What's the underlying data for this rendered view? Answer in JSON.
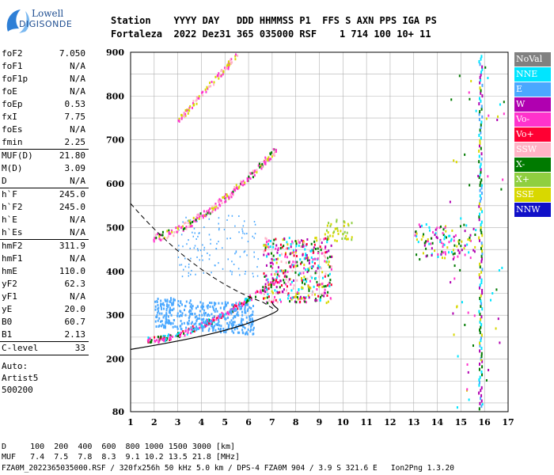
{
  "logo": {
    "line1": "Lowell",
    "line2": "DIGISONDE"
  },
  "header": {
    "line1": "Station    YYYY DAY   DDD HHMMSS P1  FFS S AXN PPS IGA PS",
    "line2": "Fortaleza  2022 Dez31 365 035000 RSF    1 714 100 10+ 11"
  },
  "parameters": [
    {
      "label": "foF2",
      "value": "7.050"
    },
    {
      "label": "foF1",
      "value": "N/A"
    },
    {
      "label": "foF1p",
      "value": "N/A"
    },
    {
      "label": "foE",
      "value": "N/A"
    },
    {
      "label": "foEp",
      "value": "0.53"
    },
    {
      "label": "fxI",
      "value": "7.75"
    },
    {
      "label": "foEs",
      "value": "N/A"
    },
    {
      "label": "fmin",
      "value": "2.25"
    },
    {
      "label": "MUF(D)",
      "value": "21.80"
    },
    {
      "label": "M(D)",
      "value": "3.09"
    },
    {
      "label": "D",
      "value": "N/A"
    },
    {
      "label": "h`F",
      "value": "245.0"
    },
    {
      "label": "h`F2",
      "value": "245.0"
    },
    {
      "label": "h`E",
      "value": "N/A"
    },
    {
      "label": "h`Es",
      "value": "N/A"
    },
    {
      "label": "hmF2",
      "value": "311.9"
    },
    {
      "label": "hmF1",
      "value": "N/A"
    },
    {
      "label": "hmE",
      "value": "110.0"
    },
    {
      "label": "yF2",
      "value": "62.3"
    },
    {
      "label": "yF1",
      "value": "N/A"
    },
    {
      "label": "yE",
      "value": "20.0"
    },
    {
      "label": "B0",
      "value": "60.7"
    },
    {
      "label": "B1",
      "value": "2.13"
    },
    {
      "label": "C-level",
      "value": "33"
    }
  ],
  "auto_text": [
    "Auto:",
    "Artist5",
    "500200"
  ],
  "legend": [
    {
      "label": "NoVal",
      "color": "#808080"
    },
    {
      "label": "NNE",
      "color": "#00e5ff"
    },
    {
      "label": "E",
      "color": "#4aa8ff"
    },
    {
      "label": "W",
      "color": "#b000b0"
    },
    {
      "label": "Vo-",
      "color": "#ff33cc"
    },
    {
      "label": "Vo+",
      "color": "#ff0033"
    },
    {
      "label": "SSW",
      "color": "#ffb3c6"
    },
    {
      "label": "X-",
      "color": "#007a00"
    },
    {
      "label": "X+",
      "color": "#8fcf40"
    },
    {
      "label": "SSE",
      "color": "#d8d800"
    },
    {
      "label": "NNW",
      "color": "#1010c8"
    }
  ],
  "axes": {
    "x_ticks": [
      "1",
      "2",
      "3",
      "4",
      "5",
      "6",
      "7",
      "8",
      "9",
      "10",
      "11",
      "12",
      "13",
      "14",
      "15",
      "16",
      "17"
    ],
    "y_ticks": [
      "80",
      "200",
      "300",
      "400",
      "500",
      "600",
      "700",
      "800",
      "900"
    ]
  },
  "footer": {
    "d_line": "D     100  200  400  600  800 1000 1500 3000 [km]",
    "muf_line": "MUF   7.4  7.5  7.8  8.3  9.1 10.2 13.5 21.8 [MHz]",
    "file_line": "FZA0M_2022365035000.RSF / 320fx256h 50 kHz 5.0 km / DPS-4 FZA0M 904 / 3.9 S 321.6 E   Ion2Png 1.3.20"
  }
}
